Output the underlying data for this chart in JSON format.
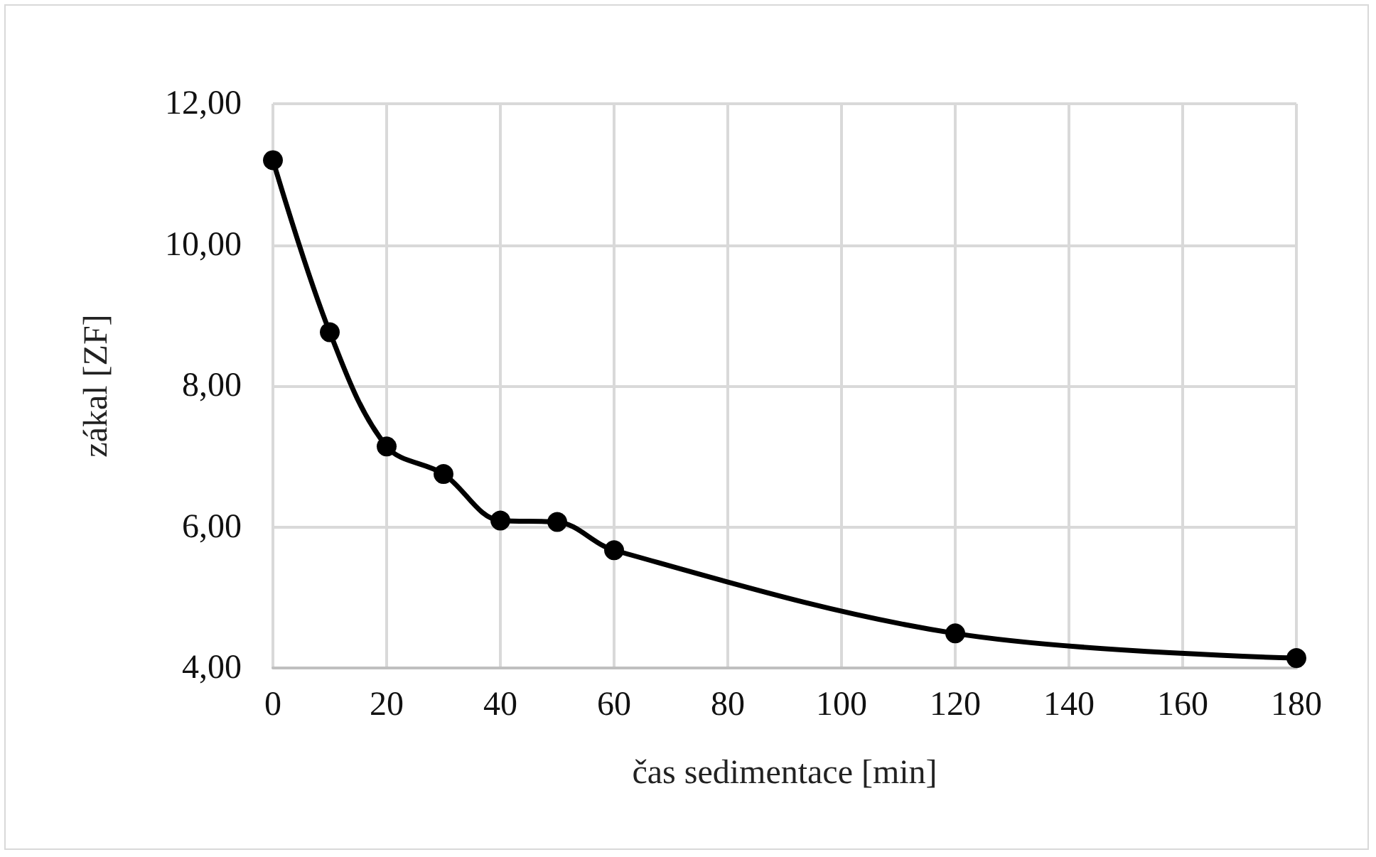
{
  "chart_data": {
    "type": "line",
    "xlabel": "čas sedimentace [min]",
    "ylabel": "zákal [ZF]",
    "x": [
      0,
      10,
      20,
      30,
      40,
      50,
      60,
      120,
      180
    ],
    "series": [
      {
        "color": "#000000",
        "values": [
          11.2,
          8.76,
          7.14,
          6.75,
          6.09,
          6.07,
          5.67,
          4.49,
          4.14
        ]
      }
    ],
    "xlim": [
      0,
      180
    ],
    "xticks": [
      0,
      20,
      40,
      60,
      80,
      100,
      120,
      140,
      160,
      180
    ],
    "ylim": [
      4,
      12
    ],
    "yticks": [
      {
        "value": 4,
        "label": "4,00"
      },
      {
        "value": 6,
        "label": "6,00"
      },
      {
        "value": 8,
        "label": "8,00"
      },
      {
        "value": 10,
        "label": "10,00"
      },
      {
        "value": 12,
        "label": "12,00"
      }
    ],
    "grid": true,
    "marker": "circle",
    "line_style": "solid"
  }
}
